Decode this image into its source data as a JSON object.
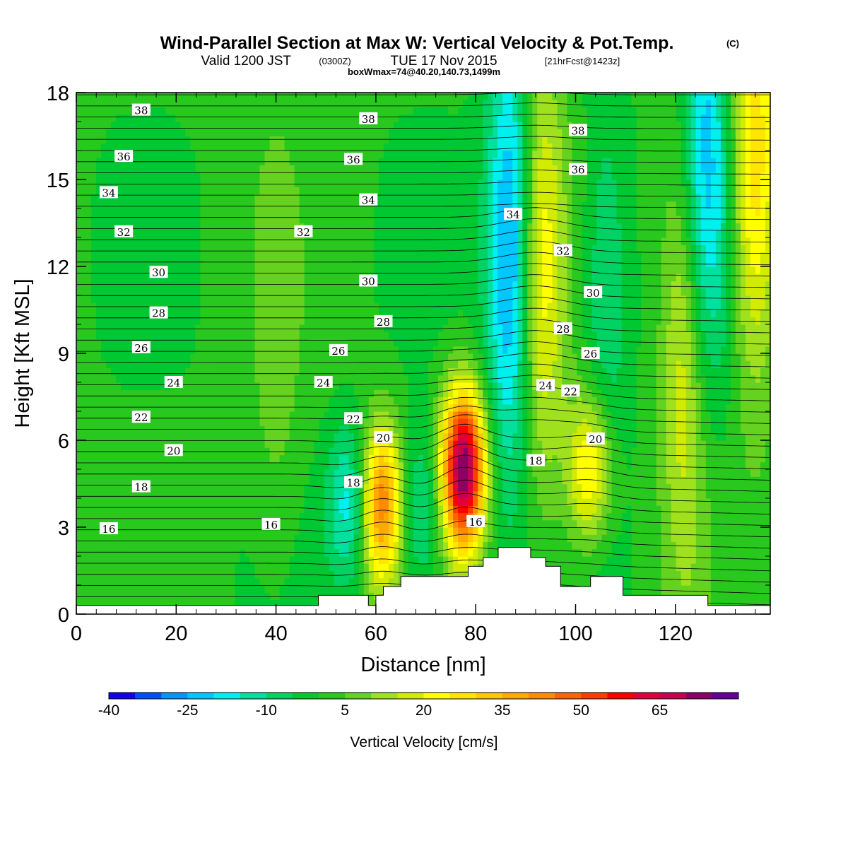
{
  "chart_data": {
    "type": "heatmap",
    "title": "Wind-Parallel Section at Max W: Vertical Velocity & Pot.Temp.",
    "title_mark": "(C)",
    "subtitle_main": "Valid 1200 JST",
    "subtitle_z": "(0300Z)",
    "subtitle_date": "TUE 17 Nov 2015",
    "subtitle_fcst": "[21hrFcst@1423z]",
    "subtitle2": "boxWmax=74@40.20,140.73,1499m",
    "xlabel": "Distance [nm]",
    "ylabel": "Height [Kft MSL]",
    "xlim": [
      0,
      139
    ],
    "ylim": [
      0,
      18
    ],
    "xticks": [
      0,
      20,
      40,
      60,
      80,
      100,
      120
    ],
    "yticks": [
      0,
      3,
      6,
      9,
      12,
      15,
      18
    ],
    "colorbar": {
      "label": "Vertical Velocity [cm/s]",
      "tick_labels": [
        -40,
        -25,
        -10,
        5,
        20,
        35,
        50,
        65
      ],
      "levels": [
        -40,
        -35,
        -30,
        -25,
        -20,
        -15,
        -10,
        -5,
        0,
        5,
        10,
        15,
        20,
        25,
        30,
        35,
        40,
        45,
        50,
        55,
        60,
        65,
        70,
        75
      ],
      "colors": [
        "#1400f0",
        "#0050ff",
        "#0096ff",
        "#00c8ff",
        "#00f0f0",
        "#00e1a0",
        "#00d264",
        "#00c832",
        "#28c81e",
        "#64d21e",
        "#a0e11e",
        "#d2eb00",
        "#ffff00",
        "#ffe600",
        "#ffc800",
        "#ffaa00",
        "#ff8c00",
        "#ff6400",
        "#ff3c00",
        "#ff0000",
        "#e1003c",
        "#c80050",
        "#8c0064",
        "#640096"
      ]
    },
    "w_features": [
      {
        "x": 55,
        "y": 3.8,
        "w": -20
      },
      {
        "x": 61,
        "y": 3.8,
        "w": 45
      },
      {
        "x": 69,
        "y": 3.5,
        "w": -15
      },
      {
        "x": 77.5,
        "y": 5.0,
        "w": 74
      },
      {
        "x": 87,
        "y": 12.5,
        "w": -30
      },
      {
        "x": 93,
        "y": 12.0,
        "w": 22
      },
      {
        "x": 103,
        "y": 5.0,
        "w": 28
      },
      {
        "x": 106,
        "y": 10.5,
        "w": -12
      },
      {
        "x": 122,
        "y": 9.0,
        "w": 20
      },
      {
        "x": 126,
        "y": 15.5,
        "w": -25
      },
      {
        "x": 136,
        "y": 16.0,
        "w": 28
      },
      {
        "x": 40,
        "y": 9.0,
        "w": 6
      }
    ],
    "theta_levels": [
      16,
      18,
      20,
      22,
      24,
      26,
      28,
      30,
      32,
      34,
      36,
      38
    ],
    "theta_label_positions": [
      {
        "x": 6.5,
        "y": 2.95,
        "label": "16"
      },
      {
        "x": 39,
        "y": 3.1,
        "label": "16"
      },
      {
        "x": 80,
        "y": 3.2,
        "label": "16"
      },
      {
        "x": 13,
        "y": 4.4,
        "label": "18"
      },
      {
        "x": 55.5,
        "y": 4.55,
        "label": "18"
      },
      {
        "x": 92,
        "y": 5.3,
        "label": "18"
      },
      {
        "x": 19.5,
        "y": 5.65,
        "label": "20"
      },
      {
        "x": 61.5,
        "y": 6.1,
        "label": "20"
      },
      {
        "x": 104,
        "y": 6.05,
        "label": "20"
      },
      {
        "x": 13,
        "y": 6.8,
        "label": "22"
      },
      {
        "x": 55.5,
        "y": 6.75,
        "label": "22"
      },
      {
        "x": 99,
        "y": 7.7,
        "label": "22"
      },
      {
        "x": 19.5,
        "y": 8.0,
        "label": "24"
      },
      {
        "x": 49.5,
        "y": 8.0,
        "label": "24"
      },
      {
        "x": 94,
        "y": 7.9,
        "label": "24"
      },
      {
        "x": 13,
        "y": 9.2,
        "label": "26"
      },
      {
        "x": 52.5,
        "y": 9.1,
        "label": "26"
      },
      {
        "x": 103,
        "y": 9.0,
        "label": "26"
      },
      {
        "x": 16.5,
        "y": 10.4,
        "label": "28"
      },
      {
        "x": 61.5,
        "y": 10.1,
        "label": "28"
      },
      {
        "x": 97.5,
        "y": 9.85,
        "label": "28"
      },
      {
        "x": 16.5,
        "y": 11.8,
        "label": "30"
      },
      {
        "x": 58.5,
        "y": 11.5,
        "label": "30"
      },
      {
        "x": 103.5,
        "y": 11.1,
        "label": "30"
      },
      {
        "x": 9.5,
        "y": 13.2,
        "label": "32"
      },
      {
        "x": 45.5,
        "y": 13.2,
        "label": "32"
      },
      {
        "x": 97.5,
        "y": 12.55,
        "label": "32"
      },
      {
        "x": 6.5,
        "y": 14.55,
        "label": "34"
      },
      {
        "x": 58.5,
        "y": 14.3,
        "label": "34"
      },
      {
        "x": 87.5,
        "y": 13.8,
        "label": "34"
      },
      {
        "x": 9.5,
        "y": 15.8,
        "label": "36"
      },
      {
        "x": 55.5,
        "y": 15.7,
        "label": "36"
      },
      {
        "x": 100.5,
        "y": 15.35,
        "label": "36"
      },
      {
        "x": 13,
        "y": 17.4,
        "label": "38"
      },
      {
        "x": 58.5,
        "y": 17.1,
        "label": "38"
      },
      {
        "x": 100.5,
        "y": 16.7,
        "label": "38"
      }
    ],
    "terrain": {
      "x": [
        0,
        48.5,
        48.5,
        58.5,
        58.5,
        60,
        60,
        61.5,
        61.5,
        65,
        65,
        78.5,
        78.5,
        81.5,
        81.5,
        84.5,
        84.5,
        91,
        91,
        94,
        94,
        97,
        97,
        103,
        103,
        109.5,
        109.5,
        126.5,
        126.5,
        139
      ],
      "y": [
        0.3,
        0.3,
        0.65,
        0.65,
        0.3,
        0.3,
        0.65,
        0.65,
        0.95,
        0.95,
        1.3,
        1.3,
        1.65,
        1.65,
        1.95,
        1.95,
        2.3,
        2.3,
        1.95,
        1.95,
        1.65,
        1.65,
        0.95,
        0.95,
        1.3,
        1.3,
        0.65,
        0.65,
        0.3,
        0.3
      ]
    }
  }
}
